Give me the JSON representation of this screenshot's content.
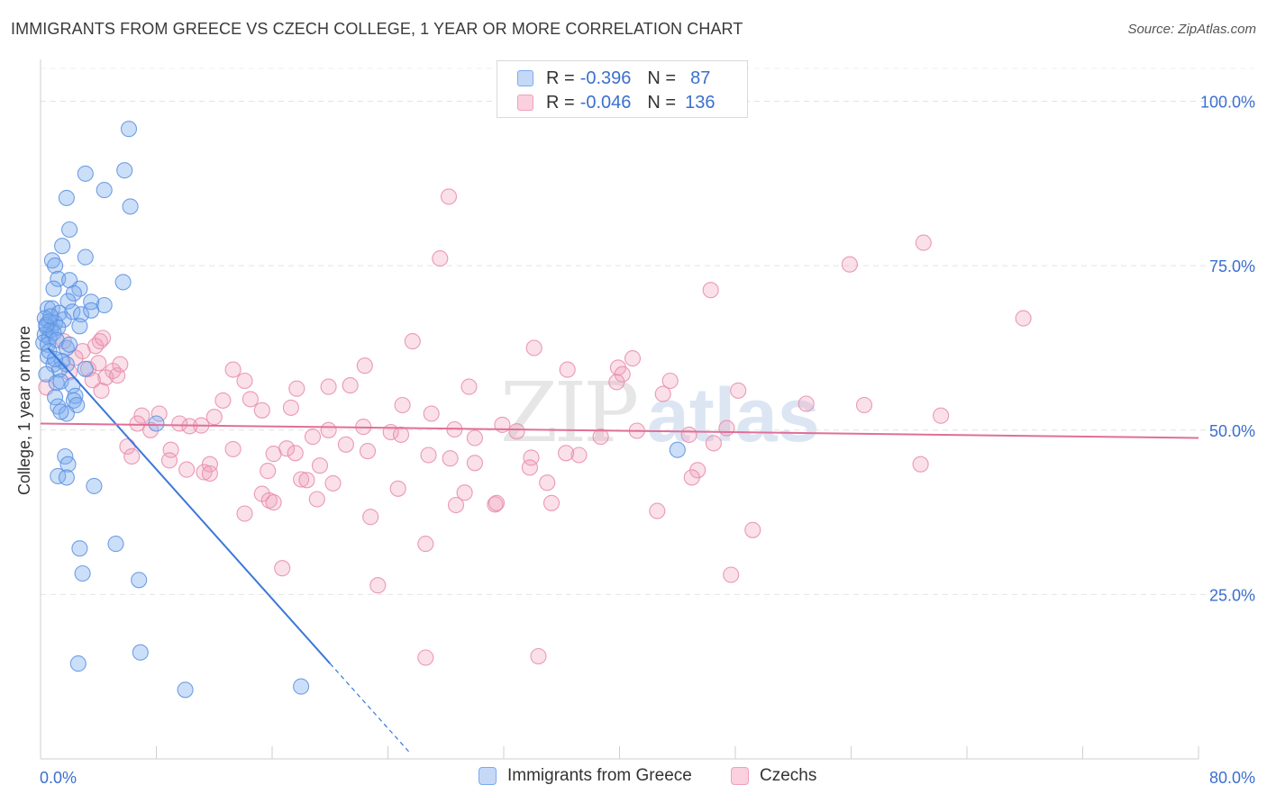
{
  "header": {
    "title": "IMMIGRANTS FROM GREECE VS CZECH COLLEGE, 1 YEAR OR MORE CORRELATION CHART",
    "source": "Source: ZipAtlas.com"
  },
  "watermark": {
    "zip": "ZIP",
    "atlas": "atlas"
  },
  "legend": {
    "rows": [
      {
        "r_label": "R =",
        "r_value": "-0.396",
        "n_label": "N =",
        "n_value": "87",
        "color": "#7aaaf0"
      },
      {
        "r_label": "R =",
        "r_value": "-0.046",
        "n_label": "N =",
        "n_value": "136",
        "color": "#f0a0bc"
      }
    ]
  },
  "bottom_legend": {
    "items": [
      {
        "label": "Immigrants from Greece",
        "color": "#7aaaf0"
      },
      {
        "label": "Czechs",
        "color": "#f0a0bc"
      }
    ]
  },
  "chart_data": {
    "type": "scatter",
    "title": "IMMIGRANTS FROM GREECE VS CZECH COLLEGE, 1 YEAR OR MORE CORRELATION CHART",
    "xlabel": "",
    "ylabel": "College, 1 year or more",
    "xlim": [
      0,
      80
    ],
    "ylim": [
      0,
      105
    ],
    "x_tick_labels": [
      "0.0%",
      "80.0%"
    ],
    "y_ticks": [
      25,
      50,
      75,
      100
    ],
    "y_tick_labels": [
      "25.0%",
      "50.0%",
      "75.0%",
      "100.0%"
    ],
    "grid": true,
    "legend_position": "top-center",
    "series": [
      {
        "name": "Immigrants from Greece",
        "color": "#7aaaf0",
        "stroke": "#5b8fe0",
        "trend_color": "#3b78d8",
        "trend": {
          "x0": 0.5,
          "y0": 62.5,
          "x1": 20.0,
          "y1": 14.5,
          "dashed_to_x": 25.5
        },
        "points": [
          [
            6.1,
            95.8
          ],
          [
            5.8,
            89.5
          ],
          [
            3.1,
            89.0
          ],
          [
            4.4,
            86.5
          ],
          [
            1.8,
            85.3
          ],
          [
            6.2,
            84.0
          ],
          [
            2.0,
            80.5
          ],
          [
            1.5,
            78.0
          ],
          [
            0.8,
            75.8
          ],
          [
            3.1,
            76.3
          ],
          [
            1.0,
            75.0
          ],
          [
            5.7,
            72.5
          ],
          [
            1.2,
            73.0
          ],
          [
            2.0,
            72.8
          ],
          [
            0.9,
            71.5
          ],
          [
            2.7,
            71.5
          ],
          [
            2.3,
            70.8
          ],
          [
            1.9,
            69.6
          ],
          [
            4.4,
            69.0
          ],
          [
            3.5,
            69.5
          ],
          [
            0.5,
            68.5
          ],
          [
            0.8,
            68.5
          ],
          [
            1.3,
            67.8
          ],
          [
            2.2,
            68.0
          ],
          [
            2.8,
            67.6
          ],
          [
            3.5,
            68.2
          ],
          [
            0.3,
            67.0
          ],
          [
            0.6,
            66.5
          ],
          [
            1.0,
            66.3
          ],
          [
            1.6,
            66.8
          ],
          [
            0.4,
            65.7
          ],
          [
            0.7,
            65.2
          ],
          [
            1.2,
            65.6
          ],
          [
            2.7,
            65.8
          ],
          [
            0.3,
            64.5
          ],
          [
            0.6,
            64.1
          ],
          [
            0.9,
            64.8
          ],
          [
            0.2,
            63.3
          ],
          [
            0.5,
            63.0
          ],
          [
            1.1,
            63.7
          ],
          [
            1.8,
            62.5
          ],
          [
            0.5,
            61.2
          ],
          [
            0.9,
            60.0
          ],
          [
            1.5,
            60.5
          ],
          [
            1.8,
            60.0
          ],
          [
            1.3,
            59.2
          ],
          [
            3.1,
            59.3
          ],
          [
            0.4,
            58.5
          ],
          [
            1.1,
            57.2
          ],
          [
            1.4,
            57.4
          ],
          [
            2.2,
            56.8
          ],
          [
            2.4,
            55.2
          ],
          [
            2.3,
            54.5
          ],
          [
            1.0,
            55.0
          ],
          [
            2.5,
            53.8
          ],
          [
            1.2,
            53.6
          ],
          [
            1.8,
            52.5
          ],
          [
            1.4,
            52.8
          ],
          [
            8.0,
            51.0
          ],
          [
            1.7,
            46.0
          ],
          [
            1.9,
            44.8
          ],
          [
            1.2,
            43.0
          ],
          [
            1.8,
            42.8
          ],
          [
            3.7,
            41.5
          ],
          [
            5.2,
            32.7
          ],
          [
            2.7,
            32.0
          ],
          [
            2.9,
            28.2
          ],
          [
            6.8,
            27.2
          ],
          [
            6.9,
            16.2
          ],
          [
            2.6,
            14.5
          ],
          [
            10.0,
            10.5
          ],
          [
            18.0,
            11.0
          ],
          [
            44.0,
            47.0
          ],
          [
            0.6,
            62.0
          ],
          [
            1.0,
            60.8
          ],
          [
            2.0,
            63.0
          ],
          [
            0.4,
            66.0
          ],
          [
            0.7,
            67.3
          ]
        ]
      },
      {
        "name": "Czechs",
        "color": "#f0a0bc",
        "stroke": "#e88aa8",
        "trend_color": "#e06f99",
        "trend": {
          "x0": 0.0,
          "y0": 51.0,
          "x1": 80.0,
          "y1": 48.8
        },
        "points": [
          [
            28.2,
            85.5
          ],
          [
            61.0,
            78.5
          ],
          [
            55.9,
            75.2
          ],
          [
            27.6,
            76.1
          ],
          [
            46.3,
            71.3
          ],
          [
            67.9,
            67.0
          ],
          [
            25.7,
            63.5
          ],
          [
            34.1,
            62.5
          ],
          [
            4.1,
            63.5
          ],
          [
            40.9,
            60.9
          ],
          [
            39.9,
            59.5
          ],
          [
            36.4,
            59.2
          ],
          [
            22.4,
            59.8
          ],
          [
            13.3,
            59.2
          ],
          [
            40.2,
            58.5
          ],
          [
            5.0,
            59.0
          ],
          [
            4.5,
            58.0
          ],
          [
            3.3,
            59.3
          ],
          [
            4.0,
            60.2
          ],
          [
            14.1,
            57.5
          ],
          [
            17.7,
            56.3
          ],
          [
            19.9,
            56.6
          ],
          [
            21.4,
            56.8
          ],
          [
            29.6,
            56.6
          ],
          [
            39.8,
            57.3
          ],
          [
            43.0,
            55.5
          ],
          [
            48.2,
            56.0
          ],
          [
            12.6,
            54.5
          ],
          [
            14.5,
            54.7
          ],
          [
            15.3,
            53.0
          ],
          [
            17.3,
            53.4
          ],
          [
            25.0,
            53.8
          ],
          [
            52.9,
            54.0
          ],
          [
            56.9,
            53.8
          ],
          [
            62.2,
            52.2
          ],
          [
            7.0,
            52.2
          ],
          [
            8.2,
            52.5
          ],
          [
            9.6,
            51.0
          ],
          [
            10.3,
            50.6
          ],
          [
            6.7,
            51.0
          ],
          [
            7.6,
            50.0
          ],
          [
            11.1,
            50.7
          ],
          [
            19.9,
            50.0
          ],
          [
            22.3,
            50.5
          ],
          [
            24.2,
            49.7
          ],
          [
            24.9,
            49.3
          ],
          [
            28.6,
            50.1
          ],
          [
            31.9,
            50.8
          ],
          [
            32.9,
            49.8
          ],
          [
            41.2,
            49.9
          ],
          [
            44.8,
            49.3
          ],
          [
            47.4,
            50.3
          ],
          [
            18.8,
            49.0
          ],
          [
            30.0,
            48.8
          ],
          [
            6.0,
            47.5
          ],
          [
            9.0,
            47.0
          ],
          [
            13.3,
            47.1
          ],
          [
            17.0,
            47.2
          ],
          [
            17.6,
            46.5
          ],
          [
            16.1,
            46.4
          ],
          [
            21.1,
            47.8
          ],
          [
            22.6,
            46.8
          ],
          [
            26.8,
            46.2
          ],
          [
            28.3,
            45.7
          ],
          [
            33.9,
            45.8
          ],
          [
            37.2,
            46.2
          ],
          [
            46.5,
            48.0
          ],
          [
            6.3,
            46.0
          ],
          [
            11.7,
            44.8
          ],
          [
            8.9,
            45.4
          ],
          [
            10.1,
            44.0
          ],
          [
            11.3,
            43.6
          ],
          [
            11.7,
            43.4
          ],
          [
            15.7,
            43.8
          ],
          [
            19.3,
            44.6
          ],
          [
            30.0,
            45.0
          ],
          [
            33.8,
            44.3
          ],
          [
            35.0,
            42.0
          ],
          [
            45.4,
            43.9
          ],
          [
            45.0,
            42.8
          ],
          [
            60.8,
            44.8
          ],
          [
            18.0,
            42.5
          ],
          [
            18.4,
            42.4
          ],
          [
            20.2,
            41.9
          ],
          [
            24.7,
            41.1
          ],
          [
            29.3,
            40.5
          ],
          [
            15.3,
            40.3
          ],
          [
            15.8,
            39.3
          ],
          [
            16.1,
            39.0
          ],
          [
            19.1,
            39.5
          ],
          [
            28.7,
            38.6
          ],
          [
            31.4,
            38.7
          ],
          [
            31.5,
            38.9
          ],
          [
            35.3,
            38.9
          ],
          [
            42.6,
            37.7
          ],
          [
            14.1,
            37.3
          ],
          [
            22.8,
            36.8
          ],
          [
            49.2,
            34.8
          ],
          [
            26.6,
            32.7
          ],
          [
            16.7,
            29.0
          ],
          [
            23.3,
            26.4
          ],
          [
            47.7,
            28.0
          ],
          [
            26.6,
            15.4
          ],
          [
            34.4,
            15.6
          ],
          [
            3.8,
            62.8
          ],
          [
            4.3,
            64.0
          ],
          [
            2.9,
            62.0
          ],
          [
            1.6,
            63.5
          ],
          [
            2.4,
            61.0
          ],
          [
            5.3,
            58.3
          ],
          [
            4.2,
            56.0
          ],
          [
            0.4,
            56.5
          ],
          [
            43.5,
            57.5
          ],
          [
            36.3,
            46.5
          ],
          [
            2.0,
            58.8
          ],
          [
            5.5,
            60.0
          ],
          [
            3.6,
            57.6
          ],
          [
            12.0,
            52.0
          ],
          [
            27.0,
            52.5
          ],
          [
            38.7,
            49.0
          ]
        ]
      }
    ]
  }
}
